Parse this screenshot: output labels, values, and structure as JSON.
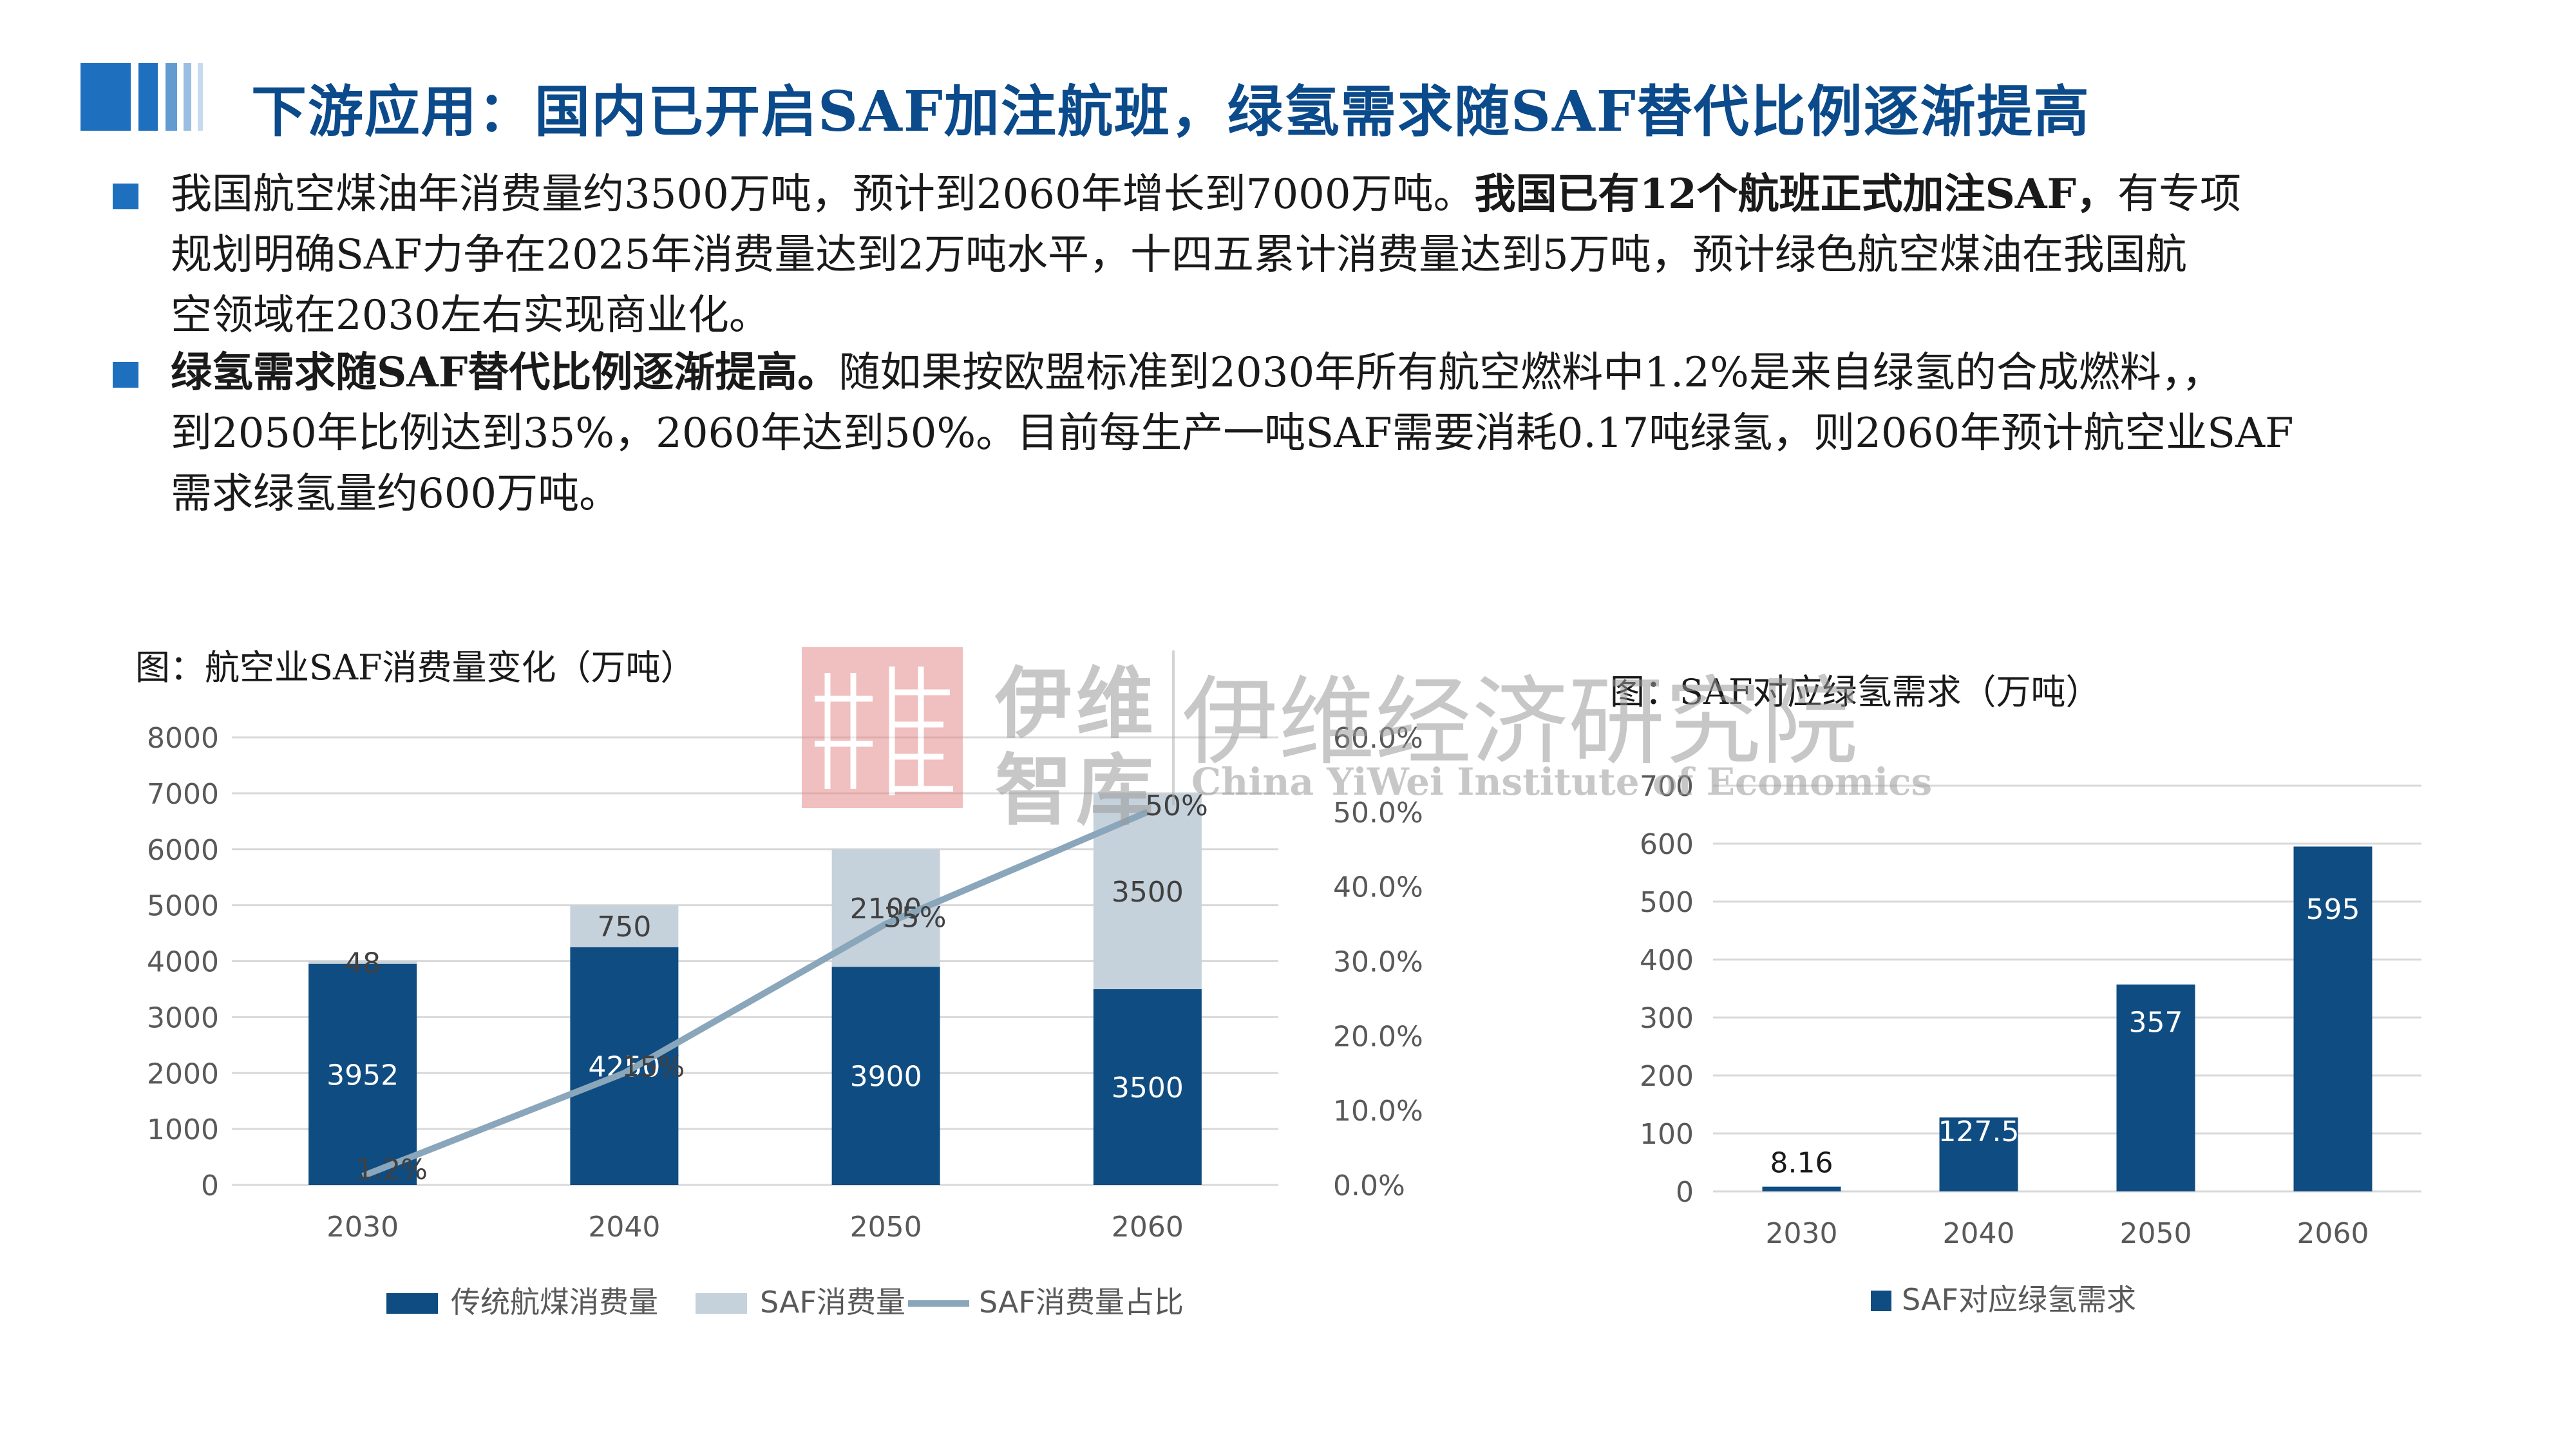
{
  "title": "下游应用：国内已开启SAF加注航班，绿氢需求随SAF替代比例逐渐提高",
  "bullets": [
    {
      "lines": [
        "我国航空煤油年消费量约3500万吨，预计到2060年增长到7000万吨。",
        "规划明确SAF力争在2025年消费量达到2万吨水平，十四五累计消费量达到5万吨，预计绿色航空煤油在我国航",
        "空领域在2030左右实现商业化。"
      ],
      "bold": "我国已有12个航班正式加注SAF，",
      "tail": "有专项"
    },
    {
      "bold": "绿氢需求随SAF替代比例逐渐提高。",
      "lines": [
        "随如果按欧盟标准到2030年所有航空燃料中1.2%是来自绿氢的合成燃料，，",
        "到2050年比例达到35%，2060年达到50%。目前每生产一吨SAF需要消耗0.17吨绿氢，则2060年预计航空业SAF",
        "需求绿氢量约600万吨。"
      ]
    }
  ],
  "watermark": {
    "brand_cn": "伊维",
    "brand_cn2": "智库",
    "institute_cn": "伊维经济研究院",
    "institute_en": "China YiWei Institute of Economics"
  },
  "chart_data": [
    {
      "type": "bar",
      "stacked": true,
      "title": "图：航空业SAF消费量变化（万吨）",
      "categories": [
        "2030",
        "2040",
        "2050",
        "2060"
      ],
      "series": [
        {
          "name": "传统航煤消费量",
          "values": [
            3952,
            4250,
            3900,
            3500
          ],
          "color": "#0f4c81"
        },
        {
          "name": "SAF消费量",
          "values": [
            48,
            750,
            2100,
            3500
          ],
          "color": "#c5d2dc"
        },
        {
          "name": "SAF消费量占比",
          "type": "line",
          "axis": "right",
          "values": [
            1.2,
            15,
            35,
            50
          ],
          "labels": [
            "1.2%",
            "15%",
            "35%",
            "50%"
          ],
          "color": "#8aa6ba"
        }
      ],
      "ylim": [
        0,
        8000
      ],
      "yticks": [
        "0",
        "1000",
        "2000",
        "3000",
        "4000",
        "5000",
        "6000",
        "7000",
        "8000"
      ],
      "y2lim": [
        0,
        60
      ],
      "y2ticks": [
        "0.0%",
        "10.0%",
        "20.0%",
        "30.0%",
        "40.0%",
        "50.0%",
        "60.0%"
      ],
      "grid": true,
      "legend": "bottom"
    },
    {
      "type": "bar",
      "title": "图：SAF对应绿氢需求（万吨）",
      "categories": [
        "2030",
        "2040",
        "2050",
        "2060"
      ],
      "series": [
        {
          "name": "SAF对应绿氢需求",
          "values": [
            8.16,
            127.5,
            357,
            595
          ],
          "labels": [
            "8.16",
            "127.5",
            "357",
            "595"
          ],
          "color": "#0f4c81"
        }
      ],
      "ylim": [
        0,
        700
      ],
      "yticks": [
        "0",
        "100",
        "200",
        "300",
        "400",
        "500",
        "600",
        "700"
      ],
      "grid": true,
      "legend": "bottom"
    }
  ]
}
